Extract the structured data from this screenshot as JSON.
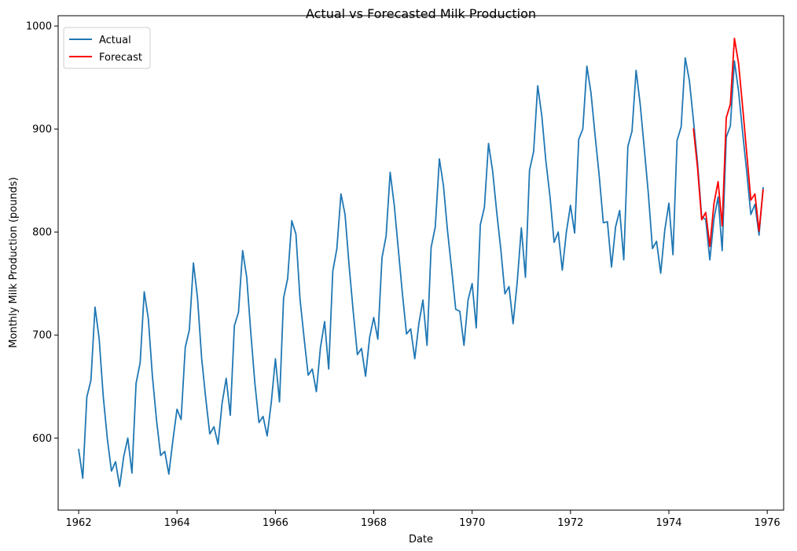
{
  "chart_data": {
    "type": "line",
    "title": "Actual vs Forecasted Milk Production",
    "xlabel": "Date",
    "ylabel": "Monthly Milk Production (pounds)",
    "xlim": [
      "1961-08",
      "1976-05"
    ],
    "ylim": [
      530,
      1010
    ],
    "x_ticks": [
      "1962",
      "1964",
      "1966",
      "1968",
      "1970",
      "1972",
      "1974",
      "1976"
    ],
    "y_ticks": [
      600,
      700,
      800,
      900,
      1000
    ],
    "grid": false,
    "legend": "top-left",
    "series": [
      {
        "name": "Actual",
        "color": "#1f77b4",
        "start": "1962-01",
        "values": [
          589,
          561,
          640,
          656,
          727,
          697,
          640,
          599,
          568,
          577,
          553,
          582,
          600,
          566,
          653,
          673,
          742,
          716,
          660,
          617,
          583,
          587,
          565,
          598,
          628,
          618,
          688,
          705,
          770,
          736,
          678,
          639,
          604,
          611,
          594,
          634,
          658,
          622,
          709,
          722,
          782,
          756,
          702,
          653,
          615,
          621,
          602,
          635,
          677,
          635,
          736,
          755,
          811,
          798,
          735,
          697,
          661,
          667,
          645,
          688,
          713,
          667,
          762,
          784,
          837,
          817,
          767,
          722,
          681,
          687,
          660,
          698,
          717,
          696,
          775,
          796,
          858,
          826,
          783,
          740,
          701,
          706,
          677,
          711,
          734,
          690,
          785,
          805,
          871,
          845,
          801,
          764,
          725,
          723,
          690,
          734,
          750,
          707,
          807,
          824,
          886,
          859,
          819,
          783,
          740,
          747,
          711,
          751,
          804,
          756,
          860,
          878,
          942,
          913,
          869,
          834,
          790,
          800,
          763,
          800,
          826,
          799,
          890,
          900,
          961,
          935,
          894,
          855,
          809,
          810,
          766,
          805,
          821,
          773,
          883,
          898,
          957,
          924,
          881,
          837,
          784,
          791,
          760,
          802,
          828,
          778,
          889,
          902,
          969,
          947,
          908,
          867,
          815,
          812,
          773,
          813,
          834,
          782,
          892,
          903,
          966,
          937,
          896,
          858,
          817,
          827,
          797,
          843
        ]
      },
      {
        "name": "Forecast",
        "color": "#ff0000",
        "start": "1974-07",
        "values": [
          900,
          862,
          812,
          819,
          786,
          828,
          849,
          806,
          911,
          924,
          988,
          964,
          921,
          876,
          831,
          837,
          801,
          841
        ]
      }
    ]
  }
}
